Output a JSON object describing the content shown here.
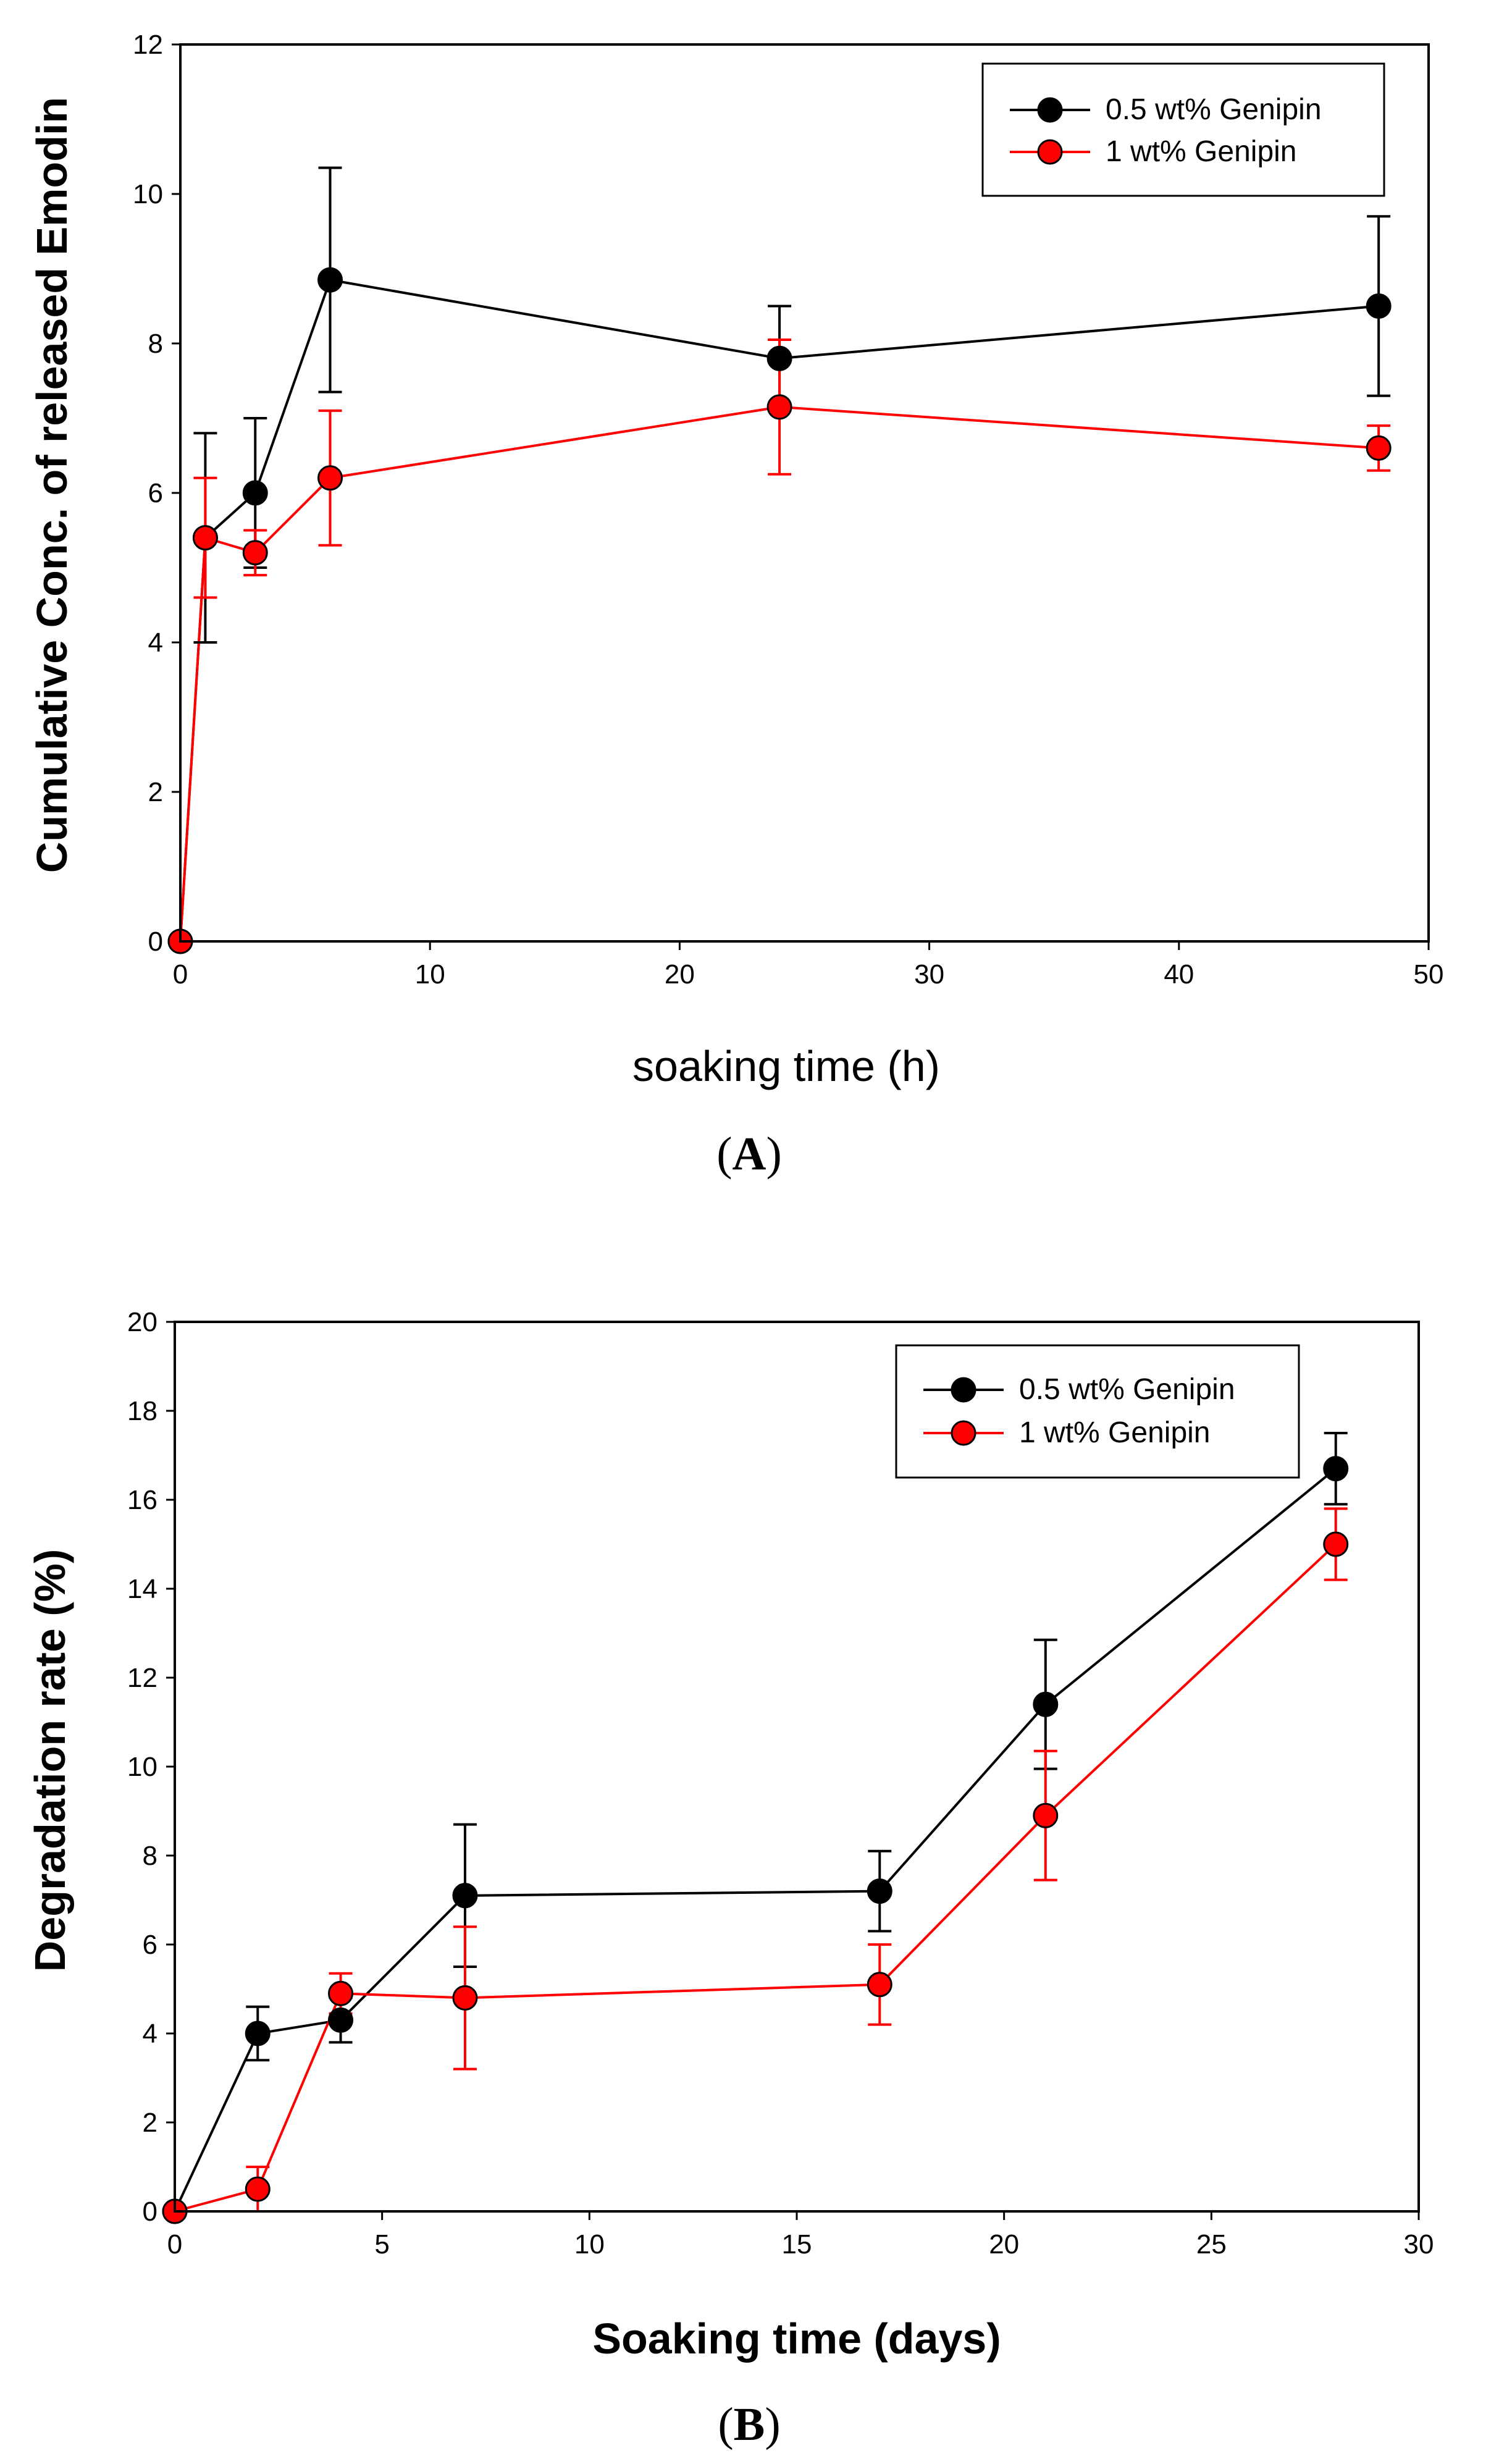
{
  "chart_data": [
    {
      "type": "line",
      "panel": "A",
      "panel_label_prefix": "(",
      "panel_label_letter": "A",
      "panel_label_suffix": ")",
      "xlabel": "soaking time (h)",
      "ylabel": "Cumulative Conc. of released Emodin",
      "xlim": [
        0,
        50
      ],
      "ylim": [
        0,
        12
      ],
      "xticks": [
        0,
        10,
        20,
        30,
        40,
        50
      ],
      "yticks": [
        0,
        2,
        4,
        6,
        8,
        10,
        12
      ],
      "legend_position": "top-right",
      "series": [
        {
          "name": "0.5 wt% Genipin",
          "color": "#000000",
          "x": [
            0,
            1,
            3,
            6,
            24,
            48
          ],
          "y": [
            0,
            5.4,
            6.0,
            8.85,
            7.8,
            8.5
          ],
          "err": [
            0,
            1.4,
            1.0,
            1.5,
            0.7,
            1.2
          ]
        },
        {
          "name": "1 wt% Genipin",
          "color": "#ff0000",
          "x": [
            0,
            1,
            3,
            6,
            24,
            48
          ],
          "y": [
            0,
            5.4,
            5.2,
            6.2,
            7.15,
            6.6
          ],
          "err": [
            0,
            0.8,
            0.3,
            0.9,
            0.9,
            0.3
          ]
        }
      ]
    },
    {
      "type": "line",
      "panel": "B",
      "panel_label_prefix": "(",
      "panel_label_letter": "B",
      "panel_label_suffix": ")",
      "xlabel": "Soaking time (days)",
      "ylabel": "Degradation rate (%)",
      "xlim": [
        0,
        30
      ],
      "ylim": [
        0,
        20
      ],
      "xticks": [
        0,
        5,
        10,
        15,
        20,
        25,
        30
      ],
      "yticks": [
        0,
        2,
        4,
        6,
        8,
        10,
        12,
        14,
        16,
        18,
        20
      ],
      "legend_position": "top-right",
      "series": [
        {
          "name": "0.5 wt% Genipin",
          "color": "#000000",
          "x": [
            0,
            2,
            4,
            7,
            17,
            21,
            28
          ],
          "y": [
            0,
            4.0,
            4.3,
            7.1,
            7.2,
            11.4,
            16.7
          ],
          "err": [
            0,
            0.6,
            0.5,
            1.6,
            0.9,
            1.45,
            0.8
          ]
        },
        {
          "name": "1 wt% Genipin",
          "color": "#ff0000",
          "x": [
            0,
            2,
            4,
            7,
            17,
            21,
            28
          ],
          "y": [
            0,
            0.5,
            4.9,
            4.8,
            5.1,
            8.9,
            15.0
          ],
          "err": [
            0,
            0.5,
            0.45,
            1.6,
            0.9,
            1.45,
            0.8
          ]
        }
      ]
    }
  ]
}
